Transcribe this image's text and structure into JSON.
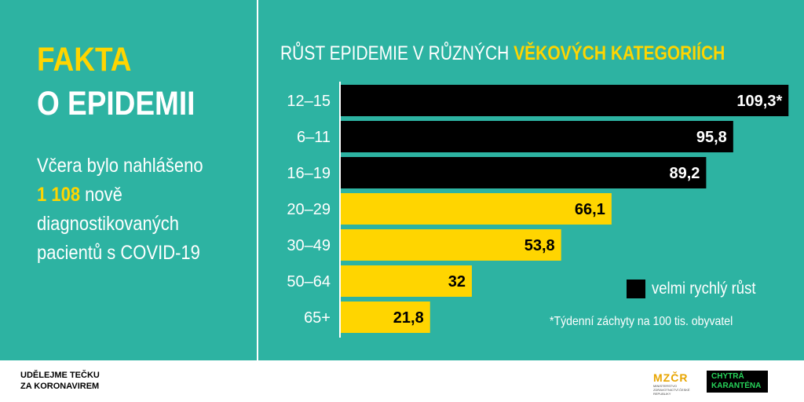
{
  "left": {
    "title_line1": "FAKTA",
    "title_line2": "O EPIDEMII",
    "desc_line1": "Včera bylo nahlášeno",
    "desc_highlight": "1 108",
    "desc_line2_rest": " nově",
    "desc_line3": "diagnostikovaných",
    "desc_line4": "pacientů s COVID-19"
  },
  "chart_title": {
    "prefix": "RŮST EPIDEMIE V RŮZNÝCH ",
    "highlight": "VĚKOVÝCH KATEGORIÍCH"
  },
  "chart_data": {
    "type": "bar",
    "orientation": "horizontal",
    "title": "RŮST EPIDEMIE V RŮZNÝCH VĚKOVÝCH KATEGORIÍCH",
    "categories": [
      "12–15",
      "6–11",
      "16–19",
      "20–29",
      "30–49",
      "50–64",
      "65+"
    ],
    "values": [
      109.3,
      95.8,
      89.2,
      66.1,
      53.8,
      32,
      21.8
    ],
    "value_labels": [
      "109,3*",
      "95,8",
      "89,2",
      "66,1",
      "53,8",
      "32",
      "21,8"
    ],
    "highlight": [
      true,
      true,
      true,
      false,
      false,
      false,
      false
    ],
    "xlim": [
      0,
      115
    ],
    "grid": false,
    "legend": "bottom-right",
    "colors": {
      "highlight_bar": "#000000",
      "normal_bar": "#ffd500",
      "highlight_text": "#ffffff",
      "normal_text": "#000000"
    }
  },
  "legend": {
    "label": "velmi rychlý růst"
  },
  "footnote": "*Týdenní záchyty na 100 tis. obyvatel",
  "footer": {
    "logo1_line1": "UDĚLEJME TEČKU",
    "logo1_line2": "ZA KORONAVIREM",
    "logo2_mark": "MZČR",
    "logo2_sub": "MINISTERSTVO ZDRAVOTNICTVÍ ČESKÉ REPUBLIKY",
    "logo3_line1": "CHYTRÁ",
    "logo3_line2": "KARANTÉNA"
  },
  "colors": {
    "background": "#2db3a2",
    "accent": "#ffd500",
    "text": "#ffffff"
  }
}
